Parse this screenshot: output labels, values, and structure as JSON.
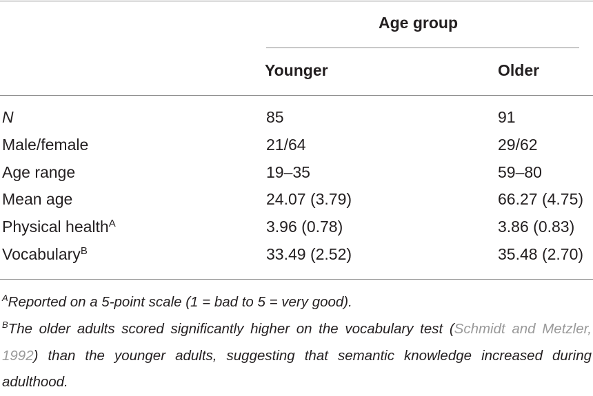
{
  "table": {
    "group_header": "Age group",
    "columns": [
      "Younger",
      "Older"
    ],
    "rows": [
      {
        "label": "N",
        "values": [
          "85",
          "91"
        ]
      },
      {
        "label": "Male/female",
        "values": [
          "21/64",
          "29/62"
        ]
      },
      {
        "label": "Age range",
        "values": [
          "19–35",
          "59–80"
        ]
      },
      {
        "label": "Mean age",
        "values": [
          "24.07 (3.79)",
          "66.27 (4.75)"
        ]
      },
      {
        "label": "Physical health",
        "note": "A",
        "values": [
          "3.96 (0.78)",
          "3.86 (0.83)"
        ]
      },
      {
        "label": "Vocabulary",
        "note": "B",
        "values": [
          "33.49 (2.52)",
          "35.48 (2.70)"
        ]
      }
    ]
  },
  "footnotes": [
    {
      "marker": "A",
      "text": "Reported on a 5-point scale (1 = bad to 5 = very good)."
    },
    {
      "marker": "B",
      "text_before": "The older adults scored significantly higher on the vocabulary test (",
      "citation": "Schmidt and Metzler, 1992",
      "text_after": ") than the younger adults, suggesting that semantic knowledge increased during adulthood."
    }
  ]
}
